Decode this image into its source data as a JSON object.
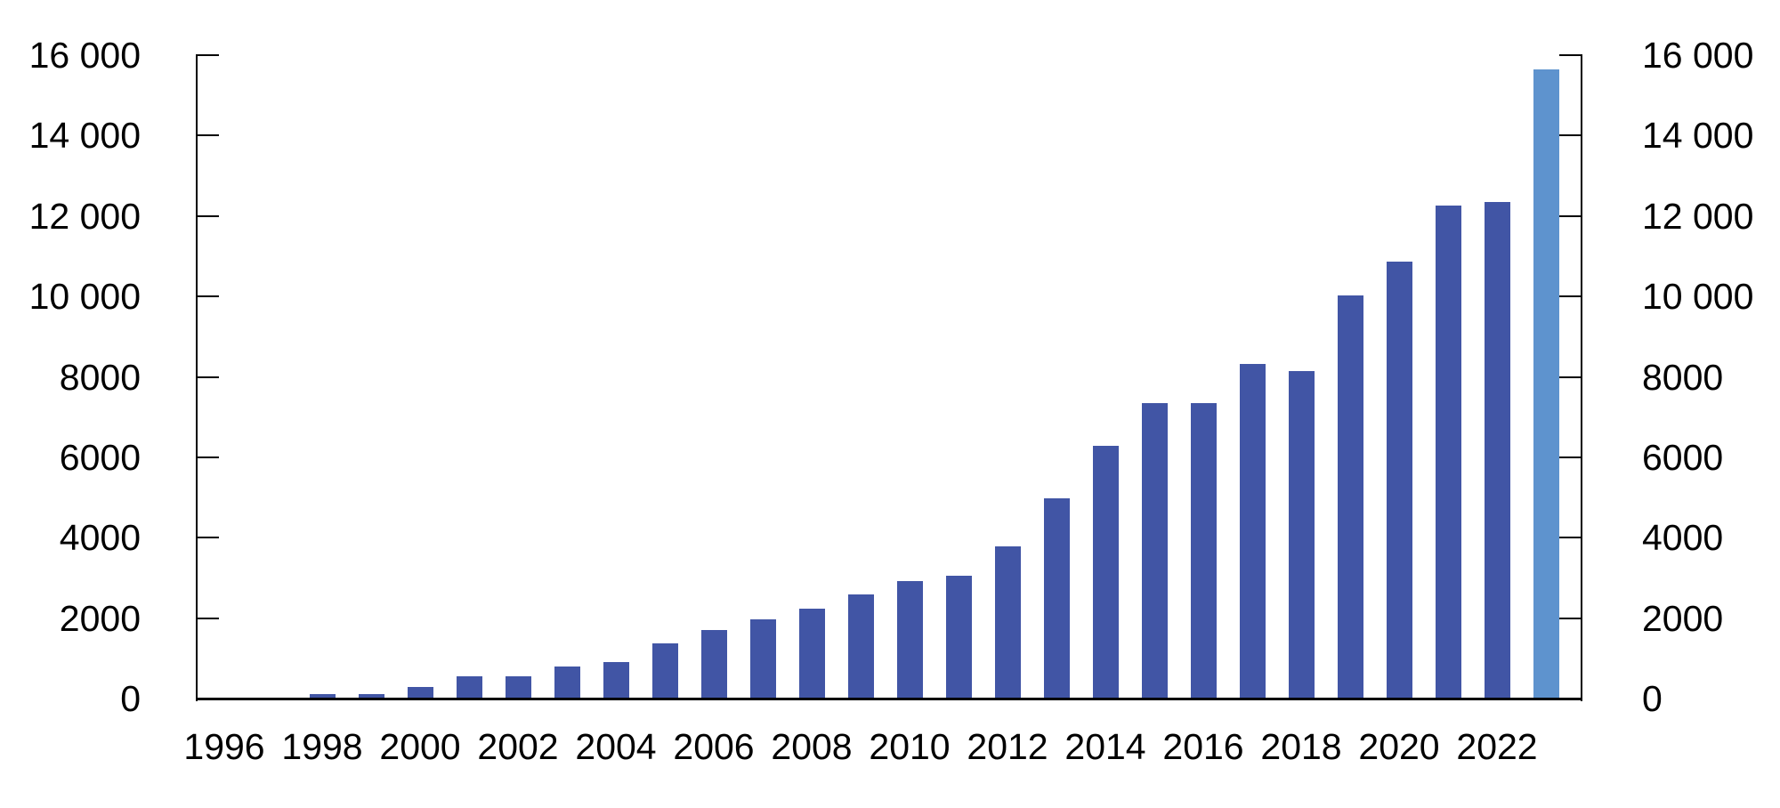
{
  "chart_data": {
    "type": "bar",
    "title": "",
    "categories": [
      1996,
      1997,
      1998,
      1999,
      2000,
      2001,
      2002,
      2003,
      2004,
      2005,
      2006,
      2007,
      2008,
      2009,
      2010,
      2011,
      2012,
      2013,
      2014,
      2015,
      2016,
      2017,
      2018,
      2019,
      2020,
      2021,
      2022,
      2023
    ],
    "values": [
      0,
      0,
      120,
      120,
      290,
      550,
      555,
      800,
      910,
      1370,
      1705,
      1970,
      2235,
      2590,
      2915,
      3060,
      3785,
      4980,
      6290,
      7350,
      7350,
      8320,
      8140,
      10030,
      10870,
      12260,
      12350,
      15640
    ],
    "highlight": {
      "year": 2023,
      "color": "#5E93CE"
    },
    "bar_color": "#4155A5",
    "axis_color": "#000000",
    "text_color": "#000000",
    "background_color": "#FFFFFF",
    "ylim": [
      0,
      16000
    ],
    "ytick_values": [
      0,
      2000,
      4000,
      6000,
      8000,
      10000,
      12000,
      14000,
      16000
    ],
    "ytick_labels": [
      "0",
      "2000",
      "4000",
      "6000",
      "8000",
      "10 000",
      "12 000",
      "14 000",
      "16 000"
    ],
    "xtick_years": [
      1996,
      1998,
      2000,
      2002,
      2004,
      2006,
      2008,
      2010,
      2012,
      2014,
      2016,
      2018,
      2020,
      2022
    ],
    "grid": false,
    "legend": false,
    "dual_axis": true,
    "xlabel": "",
    "ylabel": ""
  }
}
